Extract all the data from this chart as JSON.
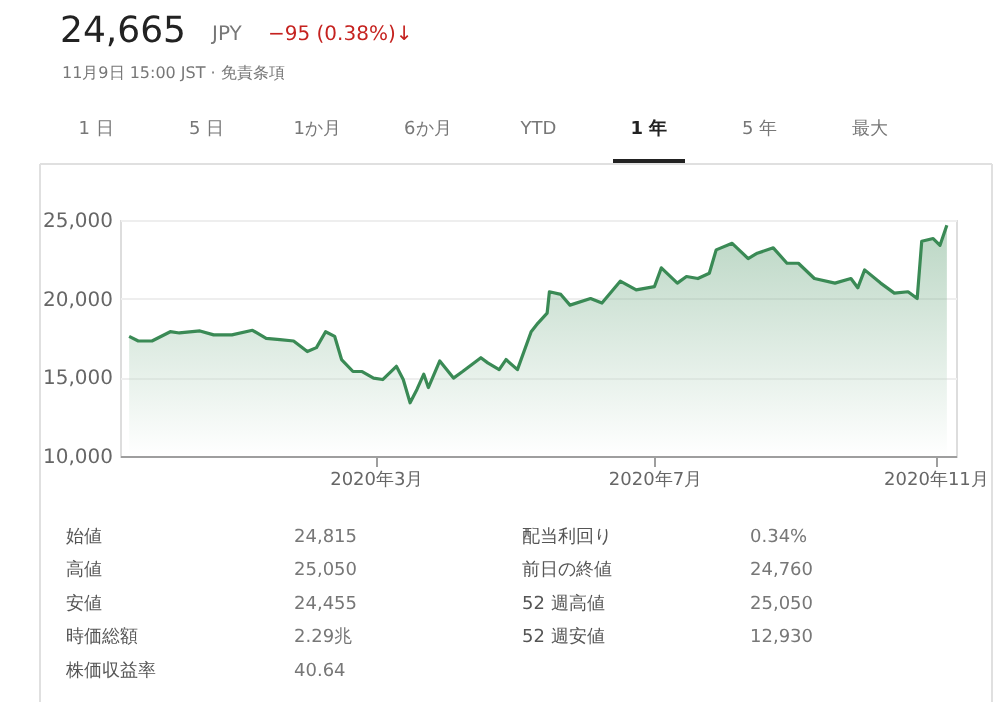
{
  "chart_data": {
    "type": "area",
    "x": [
      "2019-11-14",
      "2019-11-18",
      "2019-11-24",
      "2019-12-02",
      "2019-12-06",
      "2019-12-15",
      "2019-12-21",
      "2019-12-29",
      "2020-01-07",
      "2020-01-13",
      "2020-01-19",
      "2020-01-25",
      "2020-01-31",
      "2020-02-04",
      "2020-02-08",
      "2020-02-12",
      "2020-02-15",
      "2020-02-20",
      "2020-02-24",
      "2020-02-29",
      "2020-03-04",
      "2020-03-10",
      "2020-03-13",
      "2020-03-16",
      "2020-03-19",
      "2020-03-22",
      "2020-03-24",
      "2020-03-29",
      "2020-04-04",
      "2020-04-08",
      "2020-04-16",
      "2020-04-19",
      "2020-04-24",
      "2020-04-27",
      "2020-05-02",
      "2020-05-08",
      "2020-05-11",
      "2020-05-15",
      "2020-05-16",
      "2020-05-21",
      "2020-05-25",
      "2020-06-03",
      "2020-06-08",
      "2020-06-16",
      "2020-06-23",
      "2020-07-01",
      "2020-07-04",
      "2020-07-11",
      "2020-07-15",
      "2020-07-20",
      "2020-07-25",
      "2020-07-28",
      "2020-08-04",
      "2020-08-11",
      "2020-08-15",
      "2020-08-22",
      "2020-08-28",
      "2020-09-02",
      "2020-09-09",
      "2020-09-18",
      "2020-09-25",
      "2020-09-28",
      "2020-10-01",
      "2020-10-08",
      "2020-10-14",
      "2020-10-20",
      "2020-10-24",
      "2020-10-26",
      "2020-10-31",
      "2020-11-03",
      "2020-11-06"
    ],
    "series": [
      {
        "color": "#3a8a55",
        "values": [
          17600,
          17310,
          17310,
          17900,
          17820,
          17950,
          17700,
          17700,
          17990,
          17480,
          17400,
          17310,
          16640,
          16890,
          17900,
          17600,
          16130,
          15370,
          15370,
          14950,
          14860,
          15700,
          14860,
          13380,
          14230,
          15200,
          14350,
          16040,
          14950,
          15370,
          16250,
          15920,
          15490,
          16130,
          15490,
          17900,
          18450,
          19080,
          20440,
          20270,
          19590,
          20010,
          19720,
          21110,
          20560,
          20770,
          21960,
          20990,
          21410,
          21280,
          21620,
          23100,
          23520,
          22550,
          22890,
          23230,
          22250,
          22250,
          21280,
          20990,
          21280,
          20690,
          21830,
          20990,
          20350,
          20440,
          20010,
          23650,
          23820,
          23390,
          24665
        ]
      }
    ],
    "xlim": [
      "2019-11-10",
      "2020-11-10"
    ],
    "xticks": [
      {
        "value": "2020-03-01",
        "label": "2020年3月"
      },
      {
        "value": "2020-07-01",
        "label": "2020年7月"
      },
      {
        "value": "2020-11-01",
        "label": "2020年11月"
      }
    ],
    "ylim": [
      10000,
      25000
    ],
    "yticks": [
      {
        "value": 10000,
        "label": "10,000"
      },
      {
        "value": 15000,
        "label": "15,000"
      },
      {
        "value": 20000,
        "label": "20,000"
      },
      {
        "value": 25000,
        "label": "25,000"
      }
    ],
    "grid": "y",
    "marker": "none",
    "line_style": "solid",
    "annotations": [
      "24,665",
      "JPY",
      "−95 (0.38%)↓",
      "11月9日 15:00 JST · 免責条項",
      "1 日",
      "5 日",
      "1か月",
      "6か月",
      "YTD",
      "1 年",
      "5 年",
      "最大",
      "始値",
      "24,815",
      "高値",
      "25,050",
      "安値",
      "24,455",
      "時価総額",
      "2.29兆",
      "株価収益率",
      "40.64",
      "配当利回り",
      "0.34%",
      "前日の終値",
      "24,760",
      "52 週高値",
      "25,050",
      "52 週安値",
      "12,930"
    ]
  }
}
